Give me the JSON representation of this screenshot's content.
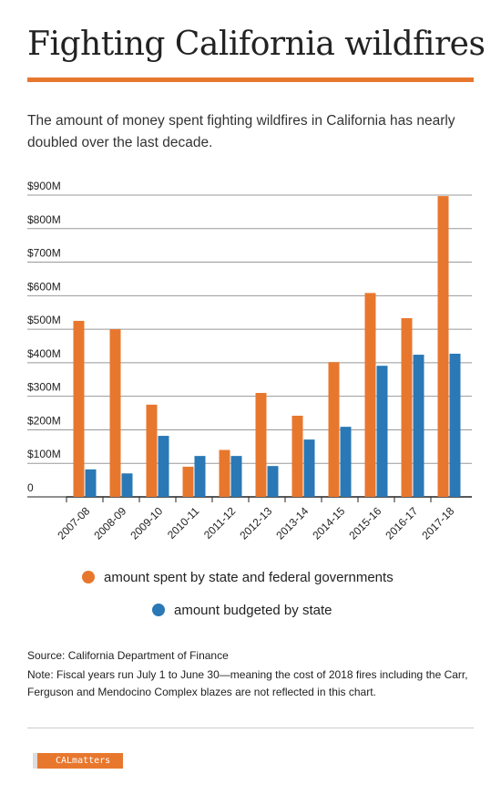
{
  "chart_data": {
    "type": "bar",
    "title": "Fighting California wildfires",
    "subtitle": "The amount of money spent fighting wildfires in California has nearly doubled over the last decade.",
    "categories": [
      "2007-08",
      "2008-09",
      "2009-10",
      "2010-11",
      "2011-12",
      "2012-13",
      "2013-14",
      "2014-15",
      "2015-16",
      "2016-17",
      "2017-18"
    ],
    "series": [
      {
        "name": "amount spent by state and federal governments",
        "color": "#e8772e",
        "values": [
          525,
          500,
          275,
          90,
          140,
          310,
          242,
          402,
          608,
          533,
          897
        ]
      },
      {
        "name": "amount budgeted by state",
        "color": "#2a78b5",
        "values": [
          82,
          70,
          182,
          122,
          122,
          92,
          171,
          209,
          391,
          424,
          427
        ]
      }
    ],
    "ylim": [
      0,
      900
    ],
    "yticks": [
      0,
      {
        "value": 100,
        "label": "$100M"
      },
      {
        "value": 200,
        "label": "$200M"
      },
      {
        "value": 300,
        "label": "$300M"
      },
      {
        "value": 400,
        "label": "$400M"
      },
      {
        "value": 500,
        "label": "$500M"
      },
      {
        "value": 600,
        "label": "$600M"
      },
      {
        "value": 700,
        "label": "$700M"
      },
      {
        "value": 800,
        "label": "$800M"
      },
      {
        "value": 900,
        "label": "$900M"
      }
    ],
    "grid": true
  },
  "source": "Source: California Department of Finance",
  "note": "Note: Fiscal years run July 1 to June 30—meaning the cost of 2018 fires including the Carr, Ferguson and Mendocino Complex blazes are not reflected in this chart.",
  "logo": "CALmatters"
}
